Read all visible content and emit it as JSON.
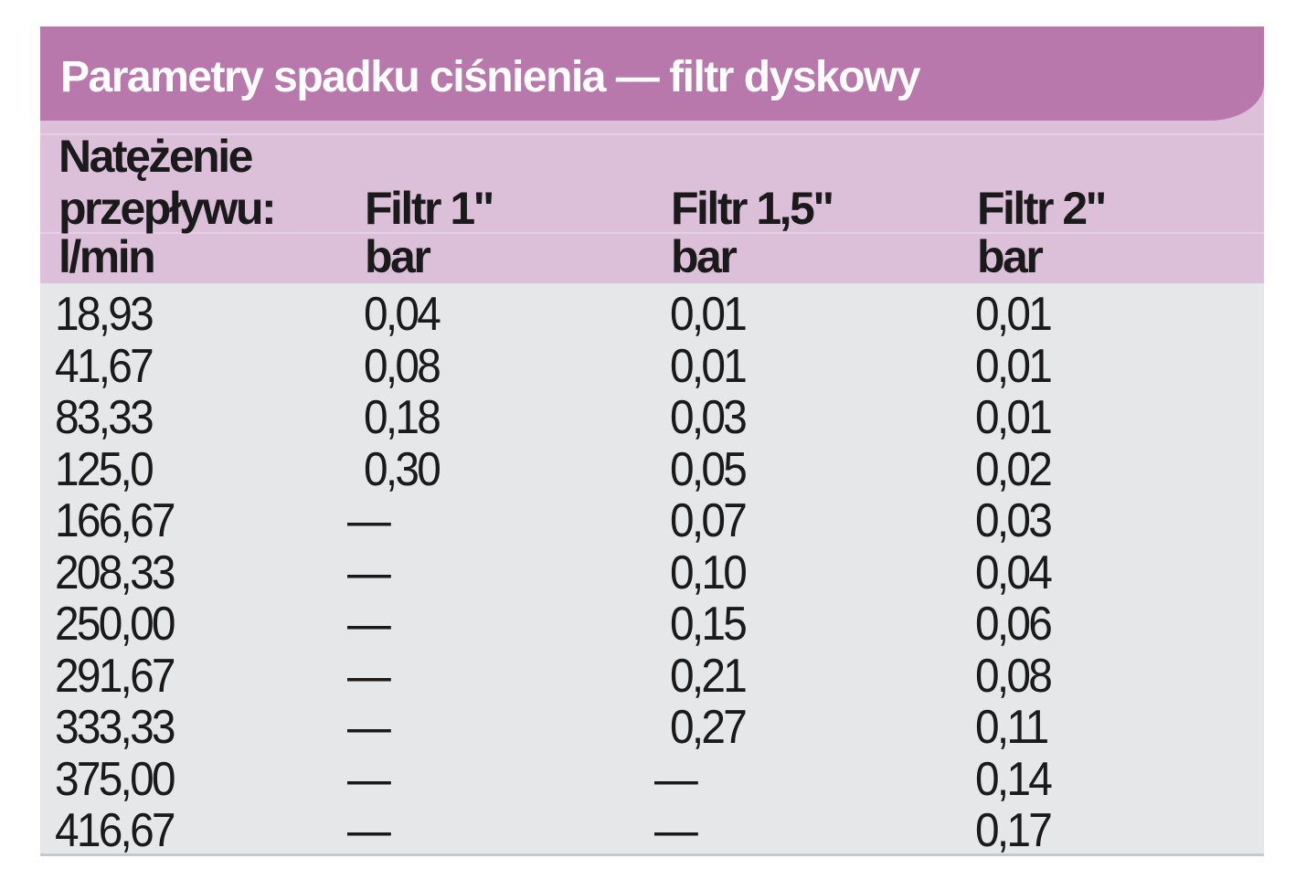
{
  "title": "Parametry spadku ciśnienia — filtr dyskowy",
  "columns": [
    {
      "line1": "Natężenie",
      "line2": "przepływu:",
      "line3": "l/min"
    },
    {
      "line1": "",
      "line2": "Filtr 1\"",
      "line3": "bar"
    },
    {
      "line1": "",
      "line2": "Filtr 1,5\"",
      "line3": "bar"
    },
    {
      "line1": "",
      "line2": "Filtr 2\"",
      "line3": "bar"
    }
  ],
  "rows": [
    [
      "18,93",
      "0,04",
      "0,01",
      "0,01"
    ],
    [
      "41,67",
      "0,08",
      "0,01",
      "0,01"
    ],
    [
      "83,33",
      "0,18",
      "0,03",
      "0,01"
    ],
    [
      "125,0",
      "0,30",
      "0,05",
      "0,02"
    ],
    [
      "166,67",
      "—",
      "0,07",
      "0,03"
    ],
    [
      "208,33",
      "—",
      "0,10",
      "0,04"
    ],
    [
      "250,00",
      "—",
      "0,15",
      "0,06"
    ],
    [
      "291,67",
      "—",
      "0,21",
      "0,08"
    ],
    [
      "333,33",
      "—",
      "0,27",
      "0,11"
    ],
    [
      "375,00",
      "—",
      "—",
      "0,14"
    ],
    [
      "416,67",
      "—",
      "—",
      "0,17"
    ]
  ],
  "colors": {
    "title_background": "#b878ac",
    "header_background": "#dcc0da",
    "body_background": "#e6e7e8",
    "title_text": "#ffffff",
    "text": "#1a1a1a"
  }
}
